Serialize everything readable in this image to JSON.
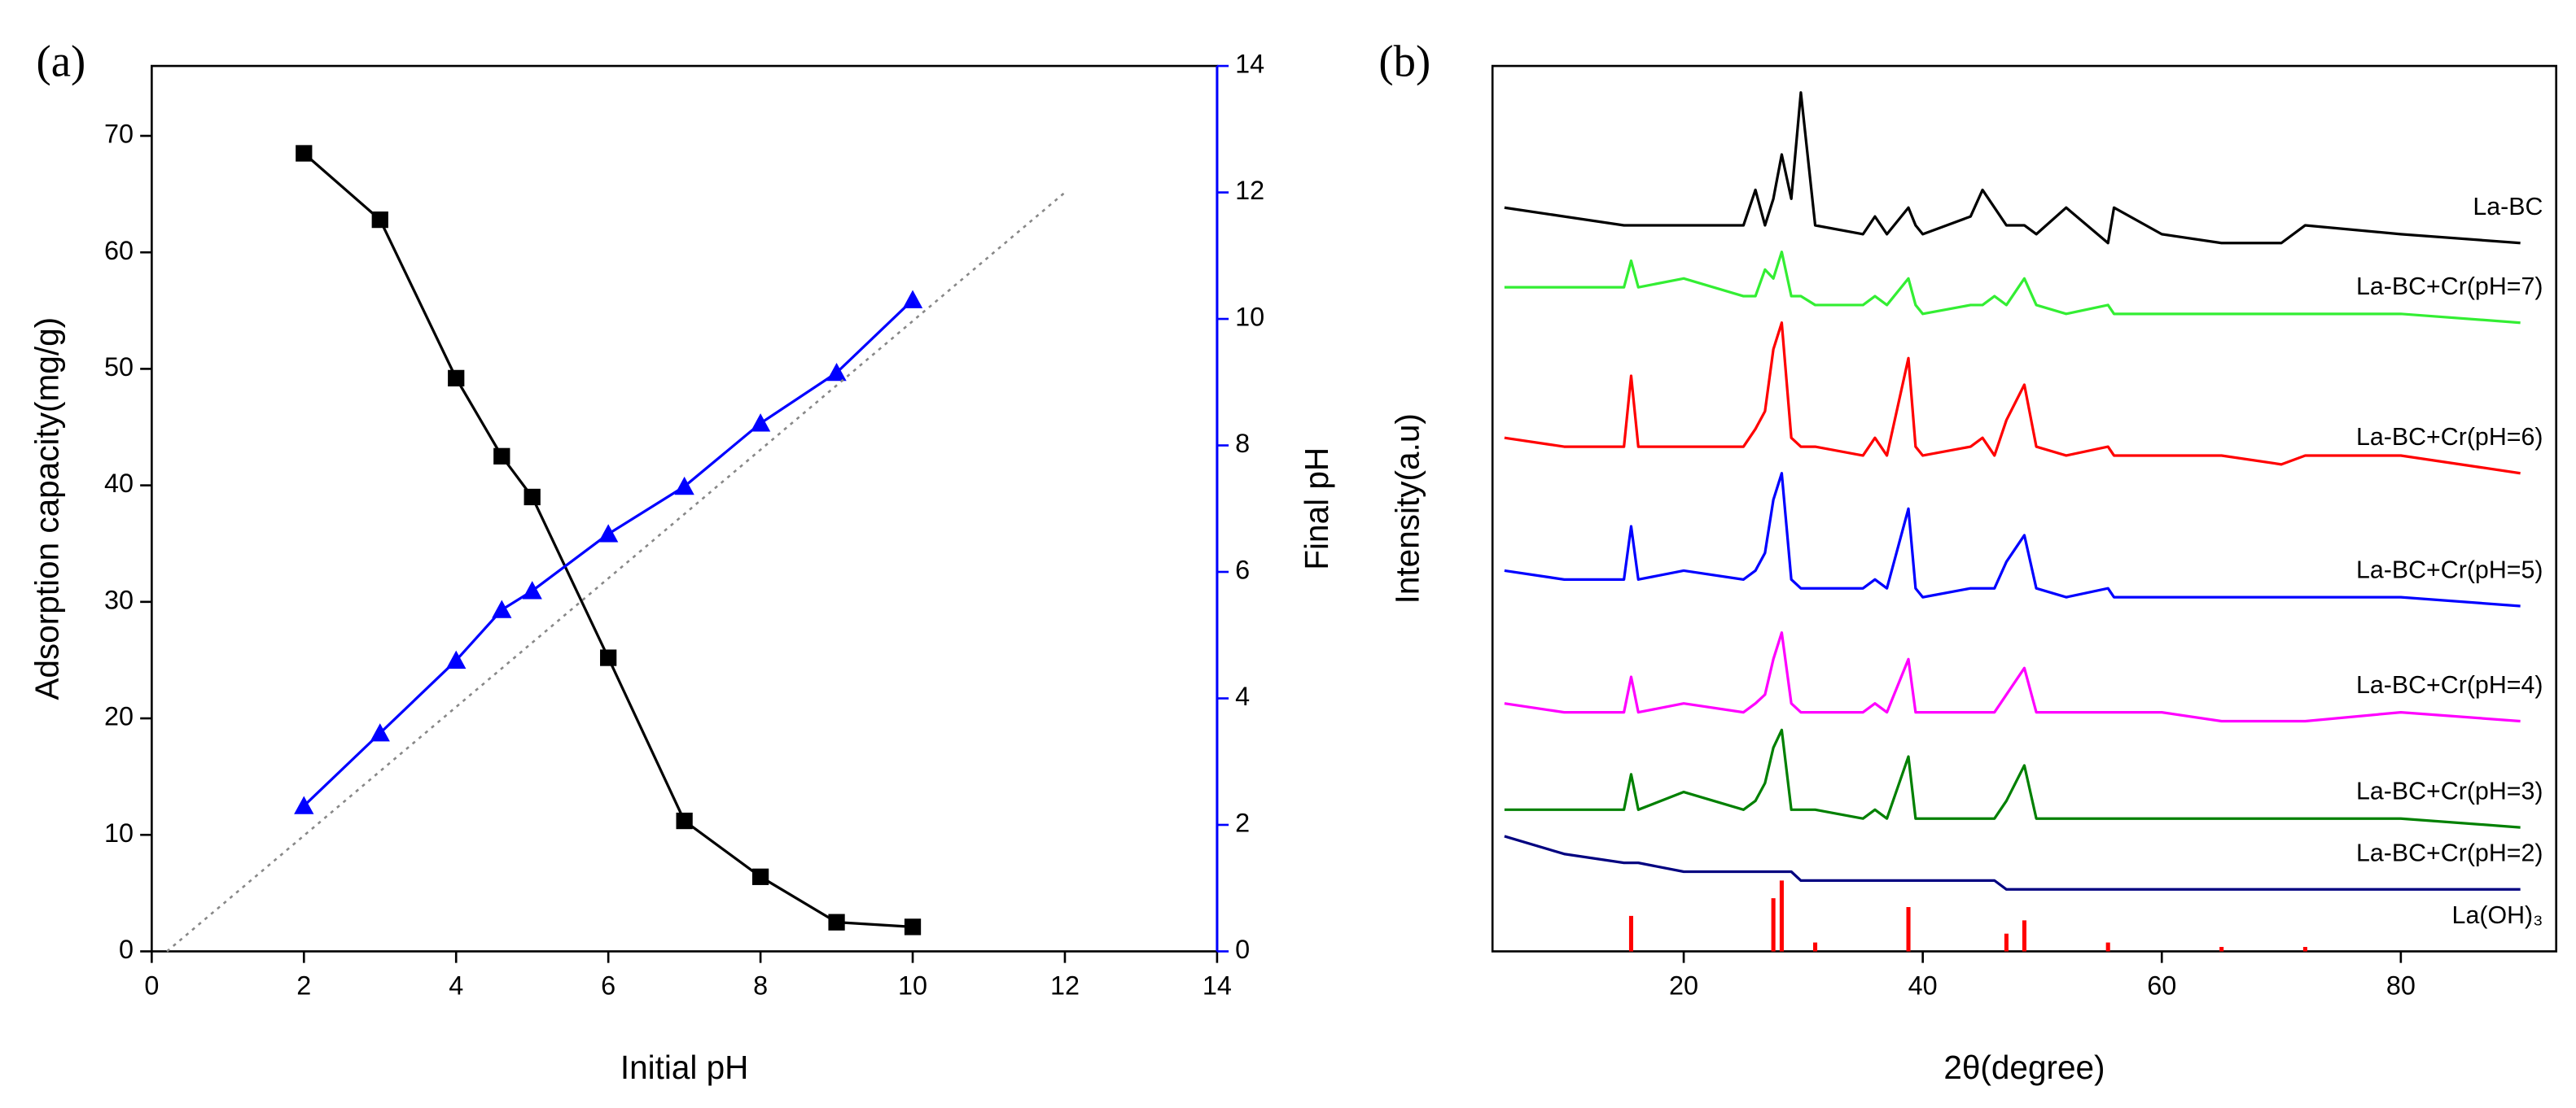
{
  "chart_data": [
    {
      "type": "line",
      "title": "(a)",
      "xlabel": "Initial pH",
      "ylabel": "Adsorption capacity(mg/g)",
      "y2label": "Final pH",
      "y2color": "#0000ff",
      "xlim": [
        0,
        14
      ],
      "xticks": [
        0,
        2,
        4,
        6,
        8,
        10,
        12,
        14
      ],
      "ylim": [
        0,
        76
      ],
      "yticks": [
        0,
        10,
        20,
        30,
        40,
        50,
        60,
        70
      ],
      "y2lim": [
        0,
        14
      ],
      "y2ticks": [
        0,
        2,
        4,
        6,
        8,
        10,
        12,
        14
      ],
      "x": [
        2,
        3,
        4,
        4.6,
        5,
        6,
        7,
        8,
        9,
        10
      ],
      "series": [
        {
          "color": "#000000",
          "marker": "square",
          "values": [
            68.5,
            62.8,
            49.2,
            42.5,
            39,
            25.2,
            11.2,
            6.4,
            2.5,
            2.1
          ]
        },
        {
          "color": "#0000ff",
          "marker": "triangle",
          "axis": "y2",
          "values": [
            2.3,
            3.45,
            4.6,
            5.4,
            5.7,
            6.6,
            7.35,
            8.35,
            9.15,
            10.3
          ]
        },
        {
          "color": "#888888",
          "linestyle": "dotted",
          "axis": "y2",
          "x": [
            0.2,
            12
          ],
          "values": [
            0,
            12
          ]
        }
      ]
    },
    {
      "type": "line",
      "title": "(b)",
      "xlabel": "2θ(degree)",
      "ylabel": "Intensity(a.u)",
      "xlim": [
        4,
        93
      ],
      "xticks": [
        20,
        40,
        60,
        80
      ],
      "ylim": [
        0,
        100
      ],
      "x": [
        5,
        10,
        15,
        15.6,
        16.2,
        20,
        25,
        26,
        26.8,
        27.5,
        28.2,
        29,
        29.8,
        31,
        35,
        36,
        37,
        38.8,
        39.4,
        40,
        44,
        45,
        46,
        47,
        48.5,
        49.5,
        52,
        55.5,
        56,
        60,
        65,
        70,
        72,
        80,
        90
      ],
      "series": [
        {
          "name": "La-BC",
          "color": "#000000",
          "values": [
            84,
            83,
            82,
            82,
            82,
            82,
            82,
            86,
            82,
            85,
            90,
            85,
            97,
            82,
            81,
            83,
            81,
            84,
            82,
            81,
            83,
            86,
            84,
            82,
            82,
            81,
            84,
            80,
            84,
            81,
            80,
            80,
            82,
            81,
            80
          ]
        },
        {
          "name": "La-BC+Cr(pH=7)",
          "color": "#33ee33",
          "values": [
            75,
            75,
            75,
            78,
            75,
            76,
            74,
            74,
            77,
            76,
            79,
            74,
            74,
            73,
            73,
            74,
            73,
            76,
            73,
            72,
            73,
            73,
            74,
            73,
            76,
            73,
            72,
            73,
            72,
            72,
            72,
            72,
            72,
            72,
            71
          ]
        },
        {
          "name": "La-BC+Cr(pH=6)",
          "color": "#ff0000",
          "values": [
            58,
            57,
            57,
            65,
            57,
            57,
            57,
            59,
            61,
            68,
            71,
            58,
            57,
            57,
            56,
            58,
            56,
            67,
            57,
            56,
            57,
            58,
            56,
            60,
            64,
            57,
            56,
            57,
            56,
            56,
            56,
            55,
            56,
            56,
            54
          ]
        },
        {
          "name": "La-BC+Cr(pH=5)",
          "color": "#0000ff",
          "values": [
            43,
            42,
            42,
            48,
            42,
            43,
            42,
            43,
            45,
            51,
            54,
            42,
            41,
            41,
            41,
            42,
            41,
            50,
            41,
            40,
            41,
            41,
            41,
            44,
            47,
            41,
            40,
            41,
            40,
            40,
            40,
            40,
            40,
            40,
            39
          ]
        },
        {
          "name": "La-BC+Cr(pH=4)",
          "color": "#ff00ff",
          "values": [
            28,
            27,
            27,
            31,
            27,
            28,
            27,
            28,
            29,
            33,
            36,
            28,
            27,
            27,
            27,
            28,
            27,
            33,
            27,
            27,
            27,
            27,
            27,
            29,
            32,
            27,
            27,
            27,
            27,
            27,
            26,
            26,
            26,
            27,
            26
          ]
        },
        {
          "name": "La-BC+Cr(pH=3)",
          "color": "#008000",
          "values": [
            16,
            16,
            16,
            20,
            16,
            18,
            16,
            17,
            19,
            23,
            25,
            16,
            16,
            16,
            15,
            16,
            15,
            22,
            15,
            15,
            15,
            15,
            15,
            17,
            21,
            15,
            15,
            15,
            15,
            15,
            15,
            15,
            15,
            15,
            14
          ]
        },
        {
          "name": "La-BC+Cr(pH=2)",
          "color": "#000080",
          "values": [
            13,
            11,
            10,
            10,
            10,
            9,
            9,
            9,
            9,
            9,
            9,
            9,
            8,
            8,
            8,
            8,
            8,
            8,
            8,
            8,
            8,
            8,
            8,
            7,
            7,
            7,
            7,
            7,
            7,
            7,
            7,
            7,
            7,
            7,
            7
          ]
        },
        {
          "name": "La(OH)₃",
          "color": "#ff0000",
          "style": "stem",
          "values": [
            0,
            0,
            0,
            4,
            0,
            0,
            0,
            0,
            0,
            6,
            8,
            0,
            0,
            1,
            0,
            0,
            0,
            5,
            0,
            0,
            0,
            0,
            0,
            2,
            3.5,
            0,
            0,
            1,
            0,
            0,
            0.5,
            0,
            0.5,
            0,
            0
          ]
        }
      ]
    }
  ]
}
